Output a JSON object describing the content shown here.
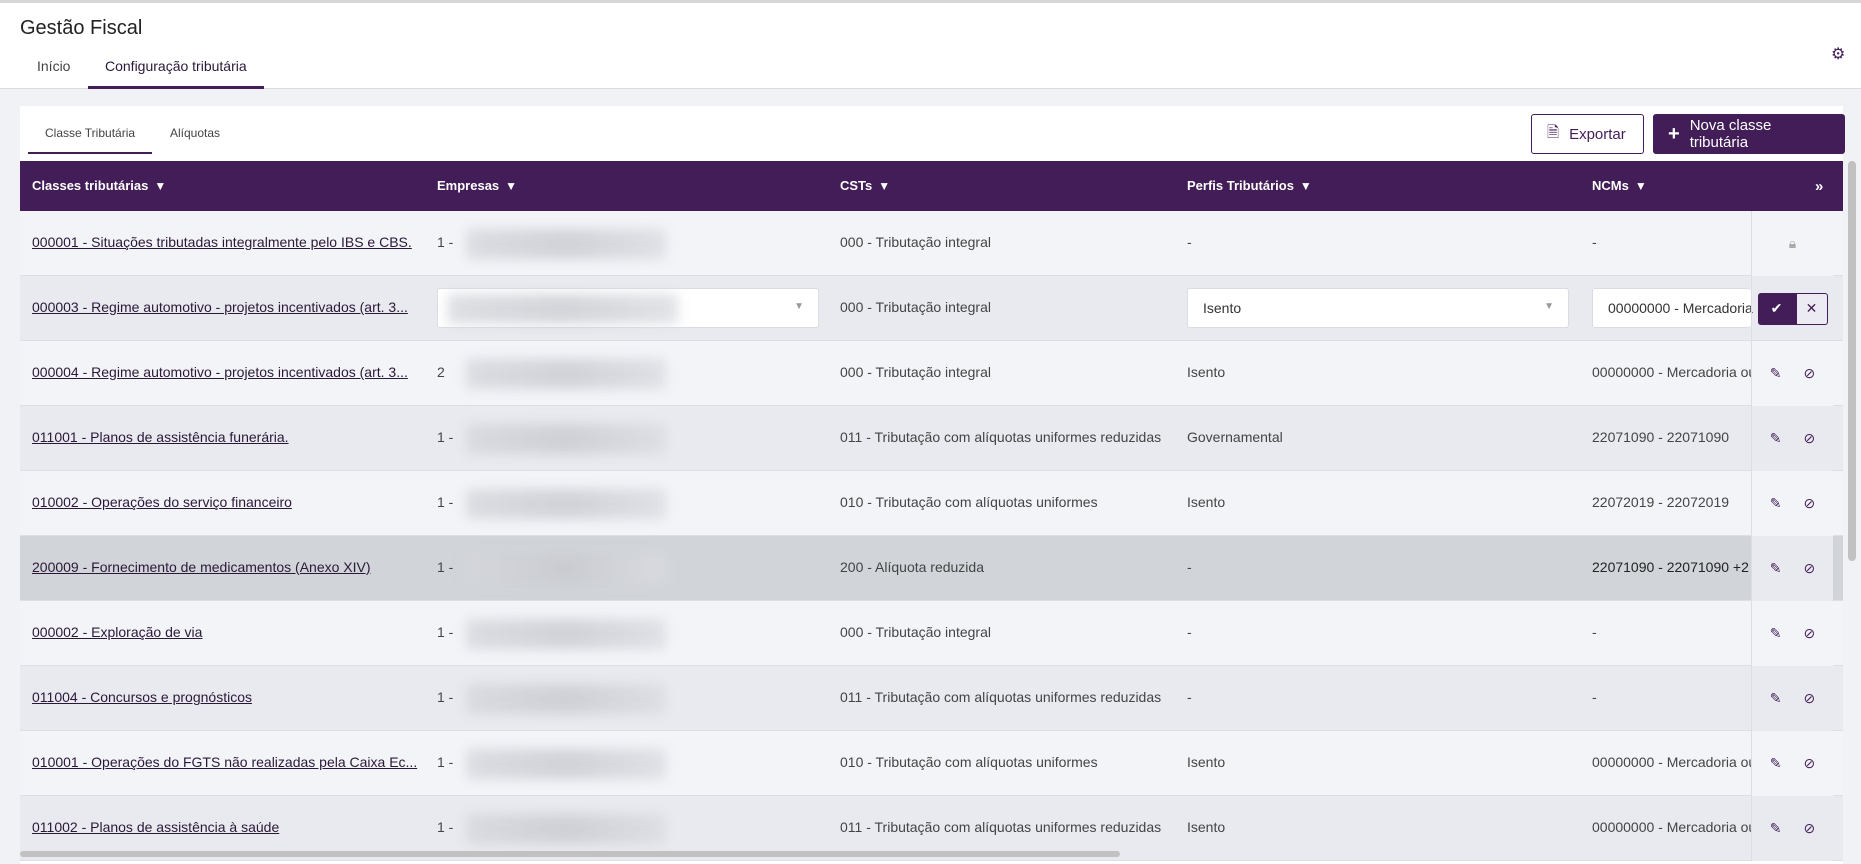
{
  "app": {
    "title": "Gestão Fiscal",
    "tabs": [
      "Início",
      "Configuração tributária"
    ],
    "active_tab": 1
  },
  "subtabs": [
    "Classe Tributária",
    "Alíquotas"
  ],
  "toolbar": {
    "export_label": "Exportar",
    "new_label": "Nova classe tributária"
  },
  "table": {
    "columns": [
      "Classes tributárias",
      "Empresas",
      "CSTs",
      "Perfis Tributários",
      "NCMs"
    ],
    "rows": [
      {
        "classe": "000001 - Situações tributadas integralmente pelo IBS e CBS.",
        "empresa": "1 -",
        "cst": "000 - Tributação integral",
        "perfil": "-",
        "ncm": "-",
        "state": "locked"
      },
      {
        "classe": "000003 - Regime automotivo - projetos incentivados (art. 3...",
        "empresa": "",
        "cst": "000 - Tributação integral",
        "perfil": "Isento",
        "ncm": "00000000 - Mercadoria",
        "state": "editing"
      },
      {
        "classe": "000004 - Regime automotivo - projetos incentivados (art. 3...",
        "empresa": "2",
        "cst": "000 - Tributação integral",
        "perfil": "Isento",
        "ncm": "00000000 - Mercadoria ou",
        "state": "normal"
      },
      {
        "classe": "011001 - Planos de assistência funerária.",
        "empresa": "1 -",
        "cst": "011 - Tributação com alíquotas uniformes reduzidas",
        "perfil": "Governamental",
        "ncm": "22071090 - 22071090",
        "state": "normal"
      },
      {
        "classe": "010002 - Operações do serviço financeiro",
        "empresa": "1 -",
        "cst": "010 - Tributação com alíquotas uniformes",
        "perfil": "Isento",
        "ncm": "22072019 - 22072019",
        "state": "normal"
      },
      {
        "classe": "200009 - Fornecimento de medicamentos (Anexo XIV)",
        "empresa": "1 -",
        "cst": "200 - Alíquota reduzida",
        "perfil": "-",
        "ncm": "22071090 - 22071090 +2",
        "state": "hover"
      },
      {
        "classe": "000002 - Exploração de via",
        "empresa": "1 -",
        "cst": "000 - Tributação integral",
        "perfil": "-",
        "ncm": "-",
        "state": "normal"
      },
      {
        "classe": "011004 - Concursos e prognósticos",
        "empresa": "1 -",
        "cst": "011 - Tributação com alíquotas uniformes reduzidas",
        "perfil": "-",
        "ncm": "-",
        "state": "normal"
      },
      {
        "classe": "010001 - Operações do FGTS não realizadas pela Caixa Ec...",
        "empresa": "1 -",
        "cst": "010 - Tributação com alíquotas uniformes",
        "perfil": "Isento",
        "ncm": "00000000 - Mercadoria ou",
        "state": "normal"
      },
      {
        "classe": "011002 - Planos de assistência à saúde",
        "empresa": "1 -",
        "cst": "011 - Tributação com alíquotas uniformes reduzidas",
        "perfil": "Isento",
        "ncm": "00000000 - Mercadoria ou",
        "state": "normal"
      }
    ]
  },
  "colors": {
    "brand": "#421d57",
    "row_a": "#f3f4f8",
    "row_b": "#e8eaef",
    "row_hover": "#d1d4d9"
  }
}
